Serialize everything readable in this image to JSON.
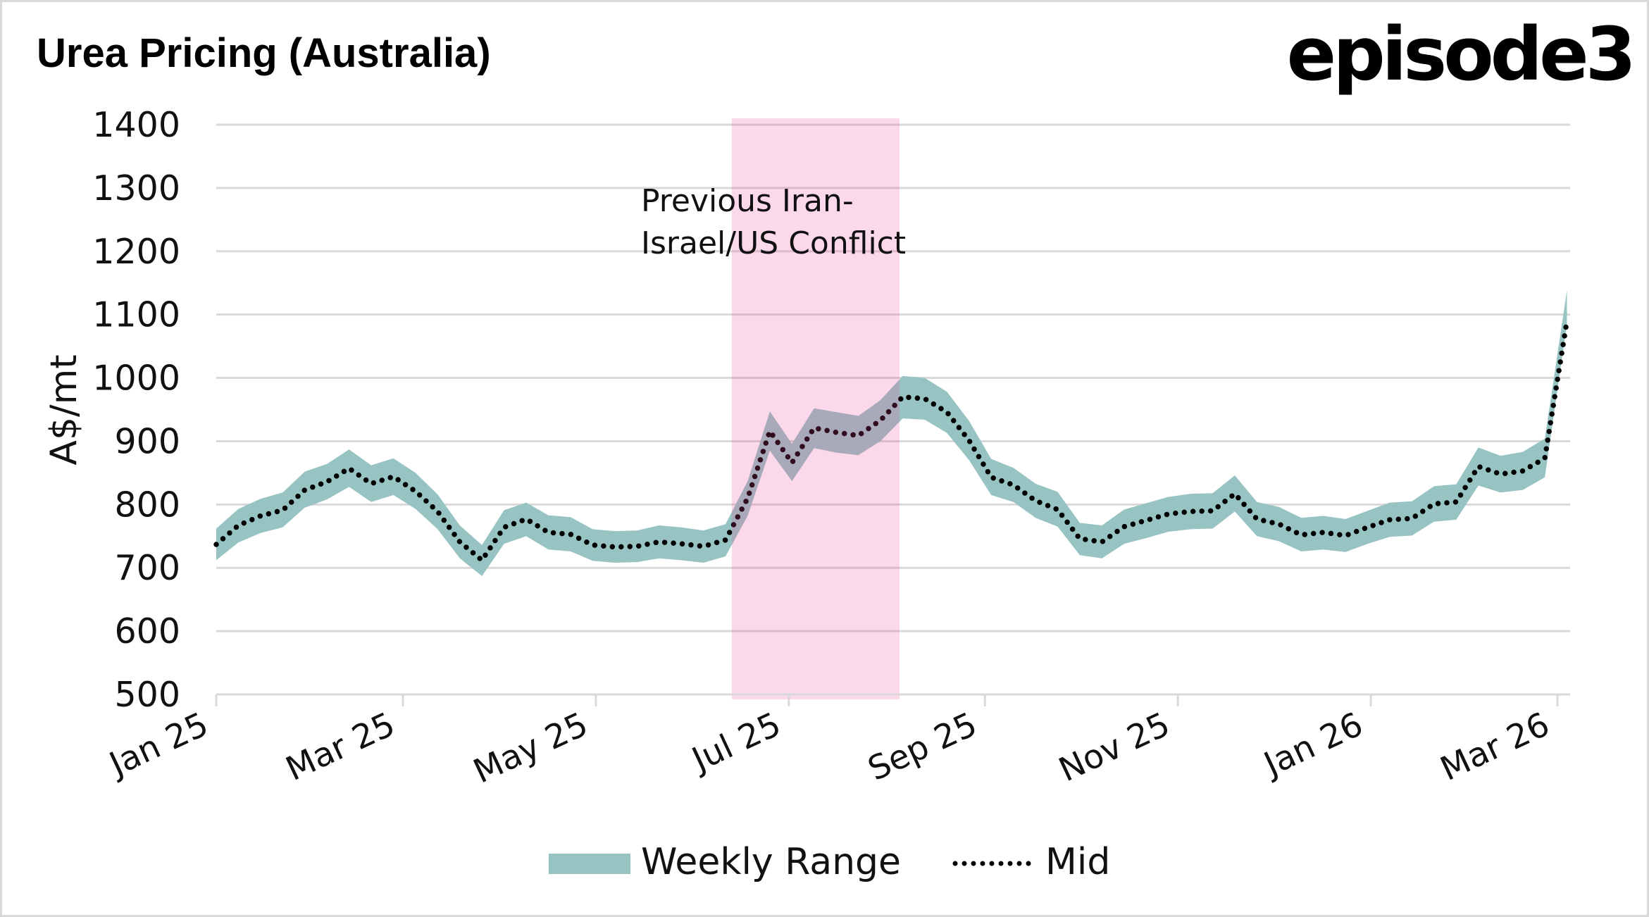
{
  "header": {
    "title": "Urea Pricing (Australia)",
    "logo": "episode3"
  },
  "chart_data": {
    "type": "area",
    "title": "Urea Pricing (Australia)",
    "xlabel": "",
    "ylabel": "A$/mt",
    "ylim": [
      500,
      1400
    ],
    "yticks": [
      500,
      600,
      700,
      800,
      900,
      1000,
      1100,
      1200,
      1300,
      1400
    ],
    "grid": true,
    "x_start": "2025-01-01",
    "x_interval_days": 7,
    "x_axis_start": "2025-01-01",
    "x_axis_end": "2026-03-05",
    "xticks": [
      {
        "label": "Jan 25",
        "date": "2025-01-01"
      },
      {
        "label": "Mar 25",
        "date": "2025-03-01"
      },
      {
        "label": "May 25",
        "date": "2025-05-01"
      },
      {
        "label": "Jul 25",
        "date": "2025-07-01"
      },
      {
        "label": "Sep 25",
        "date": "2025-09-01"
      },
      {
        "label": "Nov 25",
        "date": "2025-11-01"
      },
      {
        "label": "Jan 26",
        "date": "2026-01-01"
      },
      {
        "label": "Mar 26",
        "date": "2026-03-01"
      }
    ],
    "series": [
      {
        "name": "Weekly Range",
        "kind": "band",
        "color": "#97c3c2",
        "low": [
          712,
          740,
          755,
          764,
          795,
          808,
          828,
          804,
          815,
          793,
          761,
          715,
          687,
          738,
          750,
          729,
          726,
          711,
          708,
          709,
          715,
          712,
          708,
          718,
          782,
          885,
          837,
          889,
          882,
          878,
          900,
          936,
          934,
          913,
          870,
          815,
          804,
          779,
          765,
          720,
          715,
          738,
          747,
          757,
          761,
          762,
          789,
          750,
          742,
          726,
          729,
          725,
          738,
          749,
          751,
          773,
          776,
          830,
          819,
          823,
          843,
          1085
        ],
        "high": [
          762,
          793,
          809,
          819,
          852,
          864,
          887,
          862,
          873,
          850,
          816,
          767,
          736,
          791,
          803,
          783,
          780,
          761,
          758,
          759,
          767,
          764,
          759,
          769,
          837,
          947,
          896,
          952,
          946,
          940,
          965,
          1003,
          1000,
          978,
          932,
          872,
          858,
          833,
          820,
          771,
          767,
          792,
          802,
          812,
          817,
          818,
          846,
          804,
          796,
          779,
          782,
          777,
          790,
          803,
          805,
          829,
          832,
          890,
          877,
          883,
          904,
          1138
        ]
      },
      {
        "name": "Mid",
        "kind": "dotted-line",
        "color": "#000000",
        "values": [
          737,
          767,
          782,
          791,
          823,
          836,
          857,
          833,
          844,
          821,
          789,
          741,
          712,
          764,
          777,
          756,
          753,
          736,
          733,
          734,
          741,
          738,
          734,
          744,
          810,
          916,
          866,
          921,
          914,
          909,
          933,
          970,
          967,
          946,
          901,
          843,
          831,
          806,
          792,
          746,
          741,
          765,
          775,
          785,
          789,
          790,
          817,
          777,
          769,
          752,
          756,
          751,
          764,
          776,
          778,
          801,
          804,
          860,
          848,
          853,
          873,
          1090
        ]
      }
    ],
    "annotations": [
      {
        "kind": "shaded-region",
        "start": "2025-06-13",
        "end": "2025-08-05",
        "color": "#f14196",
        "opacity": 0.2,
        "label_lines": [
          "Previous Iran-",
          "Israel/US Conflict"
        ]
      }
    ],
    "legend": {
      "placement": "bottom-center",
      "items": [
        {
          "label": "Weekly Range",
          "swatch": "band"
        },
        {
          "label": "Mid",
          "swatch": "dotted-line"
        }
      ]
    }
  }
}
